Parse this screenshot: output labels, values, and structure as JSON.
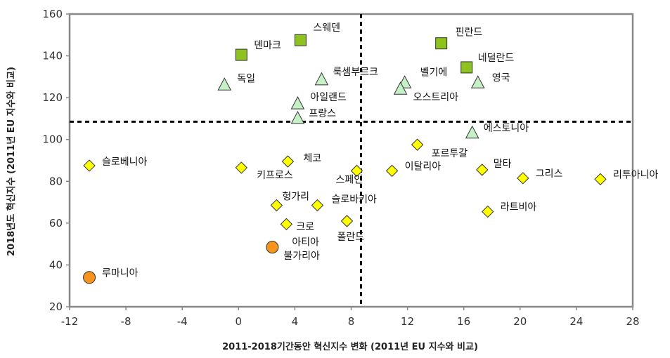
{
  "chart_data": {
    "type": "scatter",
    "xlabel": "2011-2018기간동안 혁신지수 변화 (2011년 EU 지수와 비교)",
    "ylabel": "2018년도 혁신지수 (2011년 EU 지수와 비교)",
    "xlim": [
      -12,
      28
    ],
    "ylim": [
      20,
      160
    ],
    "x_ticks": [
      -12,
      -8,
      -4,
      0,
      4,
      8,
      12,
      16,
      20,
      24,
      28
    ],
    "y_ticks": [
      20,
      40,
      60,
      80,
      100,
      120,
      140,
      160
    ],
    "grid": false,
    "reference_lines": {
      "x": 8.7,
      "y": 108.5
    },
    "marker_styles": {
      "square": {
        "fill": "#8dc21f",
        "stroke": "#333333"
      },
      "triangle": {
        "fill": "#c6f0c6",
        "stroke": "#333333"
      },
      "diamond": {
        "fill": "#ffff00",
        "stroke": "#333333"
      },
      "circle": {
        "fill": "#f7941d",
        "stroke": "#333333"
      }
    },
    "points": [
      {
        "label": "스웨덴",
        "x": 4.4,
        "y": 147.5,
        "marker": "square"
      },
      {
        "label": "핀란드",
        "x": 14.4,
        "y": 146,
        "marker": "square"
      },
      {
        "label": "덴마크",
        "x": 0.2,
        "y": 140.5,
        "marker": "square"
      },
      {
        "label": "네덜란드",
        "x": 16.2,
        "y": 134.5,
        "marker": "square"
      },
      {
        "label": "독일",
        "x": -1.0,
        "y": 126,
        "marker": "triangle"
      },
      {
        "label": "룩셈부르크",
        "x": 5.9,
        "y": 128.5,
        "marker": "triangle"
      },
      {
        "label": "벨기에",
        "x": 11.8,
        "y": 127,
        "marker": "triangle"
      },
      {
        "label": "오스트리아",
        "x": 11.5,
        "y": 124,
        "marker": "triangle"
      },
      {
        "label": "영국",
        "x": 17.0,
        "y": 127,
        "marker": "triangle"
      },
      {
        "label": "아일랜드",
        "x": 4.2,
        "y": 117,
        "marker": "triangle"
      },
      {
        "label": "프랑스",
        "x": 4.2,
        "y": 110,
        "marker": "triangle"
      },
      {
        "label": "에스토니아",
        "x": 16.6,
        "y": 103,
        "marker": "triangle"
      },
      {
        "label": "슬로베니아",
        "x": -10.6,
        "y": 87.5,
        "marker": "diamond"
      },
      {
        "label": "키프로스",
        "x": 0.2,
        "y": 86.5,
        "marker": "diamond"
      },
      {
        "label": "체코",
        "x": 3.5,
        "y": 89.5,
        "marker": "diamond"
      },
      {
        "label": "스페인",
        "x": 8.4,
        "y": 85,
        "marker": "diamond"
      },
      {
        "label": "이탈리아",
        "x": 10.9,
        "y": 85,
        "marker": "diamond"
      },
      {
        "label": "포르투갈",
        "x": 12.7,
        "y": 97.5,
        "marker": "diamond"
      },
      {
        "label": "말타",
        "x": 17.3,
        "y": 85.5,
        "marker": "diamond"
      },
      {
        "label": "그리스",
        "x": 20.2,
        "y": 81.5,
        "marker": "diamond"
      },
      {
        "label": "리투아니아",
        "x": 25.7,
        "y": 81,
        "marker": "diamond"
      },
      {
        "label": "헝가리",
        "x": 2.7,
        "y": 68.5,
        "marker": "diamond"
      },
      {
        "label": "슬로바키아",
        "x": 5.6,
        "y": 68.5,
        "marker": "diamond"
      },
      {
        "label": "크로아티아",
        "x": 3.4,
        "y": 59.5,
        "marker": "diamond"
      },
      {
        "label": "폴란드",
        "x": 7.7,
        "y": 61,
        "marker": "diamond"
      },
      {
        "label": "라트비아",
        "x": 17.7,
        "y": 65.5,
        "marker": "diamond"
      },
      {
        "label": "불가리아",
        "x": 2.4,
        "y": 48.5,
        "marker": "circle"
      },
      {
        "label": "루마니아",
        "x": -10.6,
        "y": 34,
        "marker": "circle"
      }
    ]
  }
}
